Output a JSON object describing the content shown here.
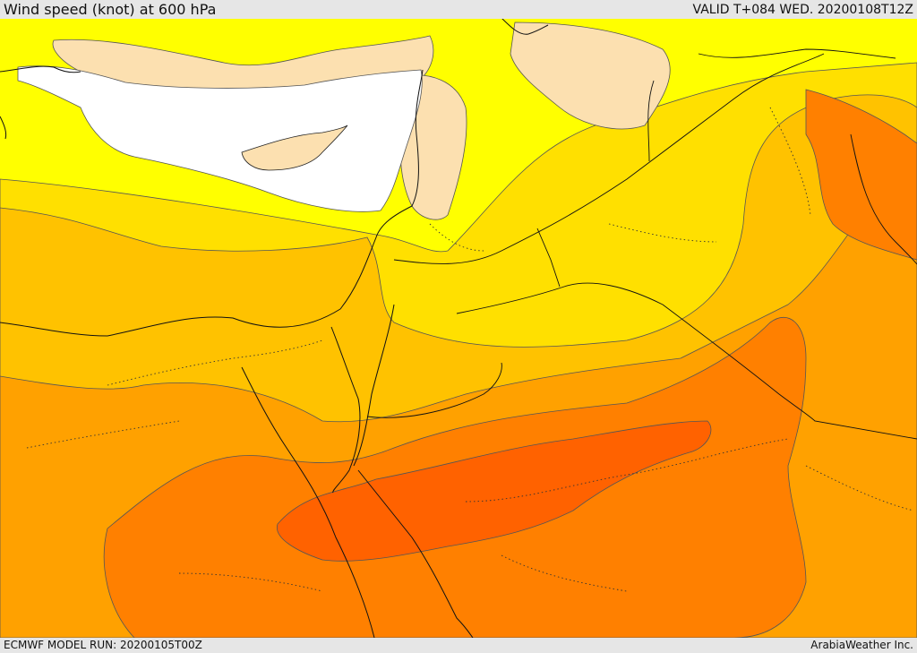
{
  "header": {
    "title": "Wind speed (knot) at 600 hPa",
    "valid": "VALID T+084 WED. 20200108T12Z"
  },
  "footer": {
    "model_run": "ECMWF MODEL RUN: 20200105T00Z",
    "credit": "ArabiaWeather Inc."
  },
  "map": {
    "field": "wind speed at 600 hPa",
    "colors": {
      "sea": "#ffffff",
      "band_lightest": "#fce0b0",
      "band_yellow": "#ffff00",
      "band_gold": "#ffe000",
      "band_amber": "#ffc200",
      "band_orange": "#ffa100",
      "band_darkorange": "#ff8000",
      "band_red_orange": "#ff6200",
      "contour": "#444444",
      "border": "#111111"
    }
  }
}
